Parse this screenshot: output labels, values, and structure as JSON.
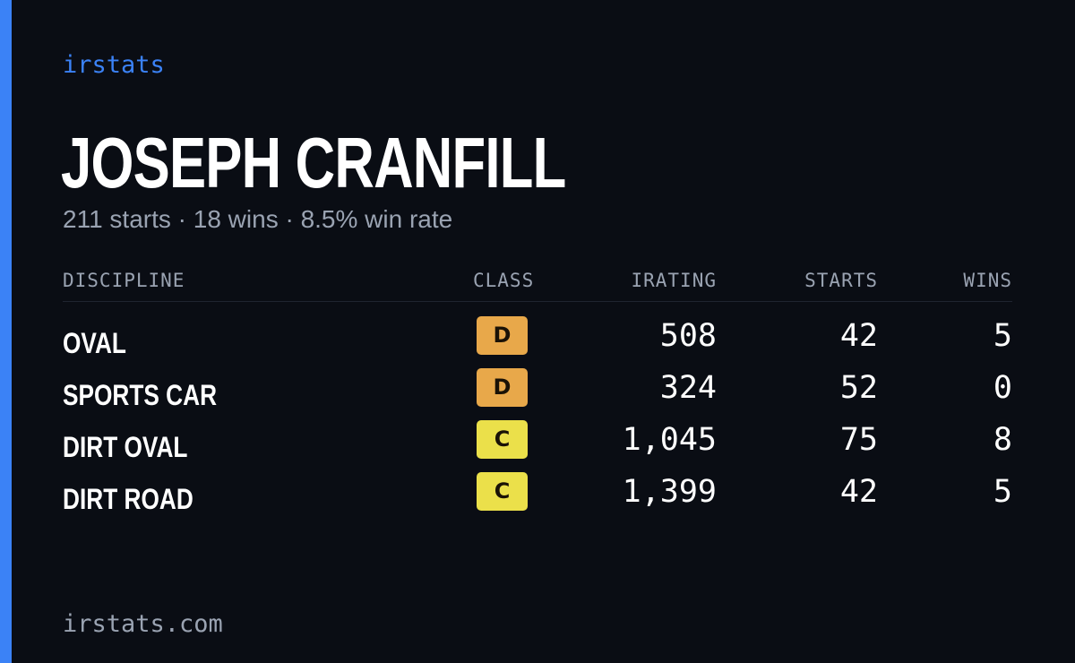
{
  "brand": {
    "label": "irstats"
  },
  "driver": {
    "name": "JOSEPH CRANFILL",
    "summary": "211 starts · 18 wins · 8.5% win rate"
  },
  "table": {
    "headers": {
      "discipline": "DISCIPLINE",
      "class": "CLASS",
      "irating": "IRATING",
      "starts": "STARTS",
      "wins": "WINS"
    },
    "rows": [
      {
        "discipline": "OVAL",
        "class": "D",
        "irating": "508",
        "starts": "42",
        "wins": "5"
      },
      {
        "discipline": "SPORTS CAR",
        "class": "D",
        "irating": "324",
        "starts": "52",
        "wins": "0"
      },
      {
        "discipline": "DIRT OVAL",
        "class": "C",
        "irating": "1,045",
        "starts": "75",
        "wins": "8"
      },
      {
        "discipline": "DIRT ROAD",
        "class": "C",
        "irating": "1,399",
        "starts": "42",
        "wins": "5"
      }
    ]
  },
  "footer": {
    "url": "irstats.com"
  },
  "colors": {
    "background": "#0a0d14",
    "accent": "#3b82f6",
    "class_D": "#e8a84a",
    "class_C": "#ebe04a",
    "muted_text": "#9aa3b2"
  }
}
